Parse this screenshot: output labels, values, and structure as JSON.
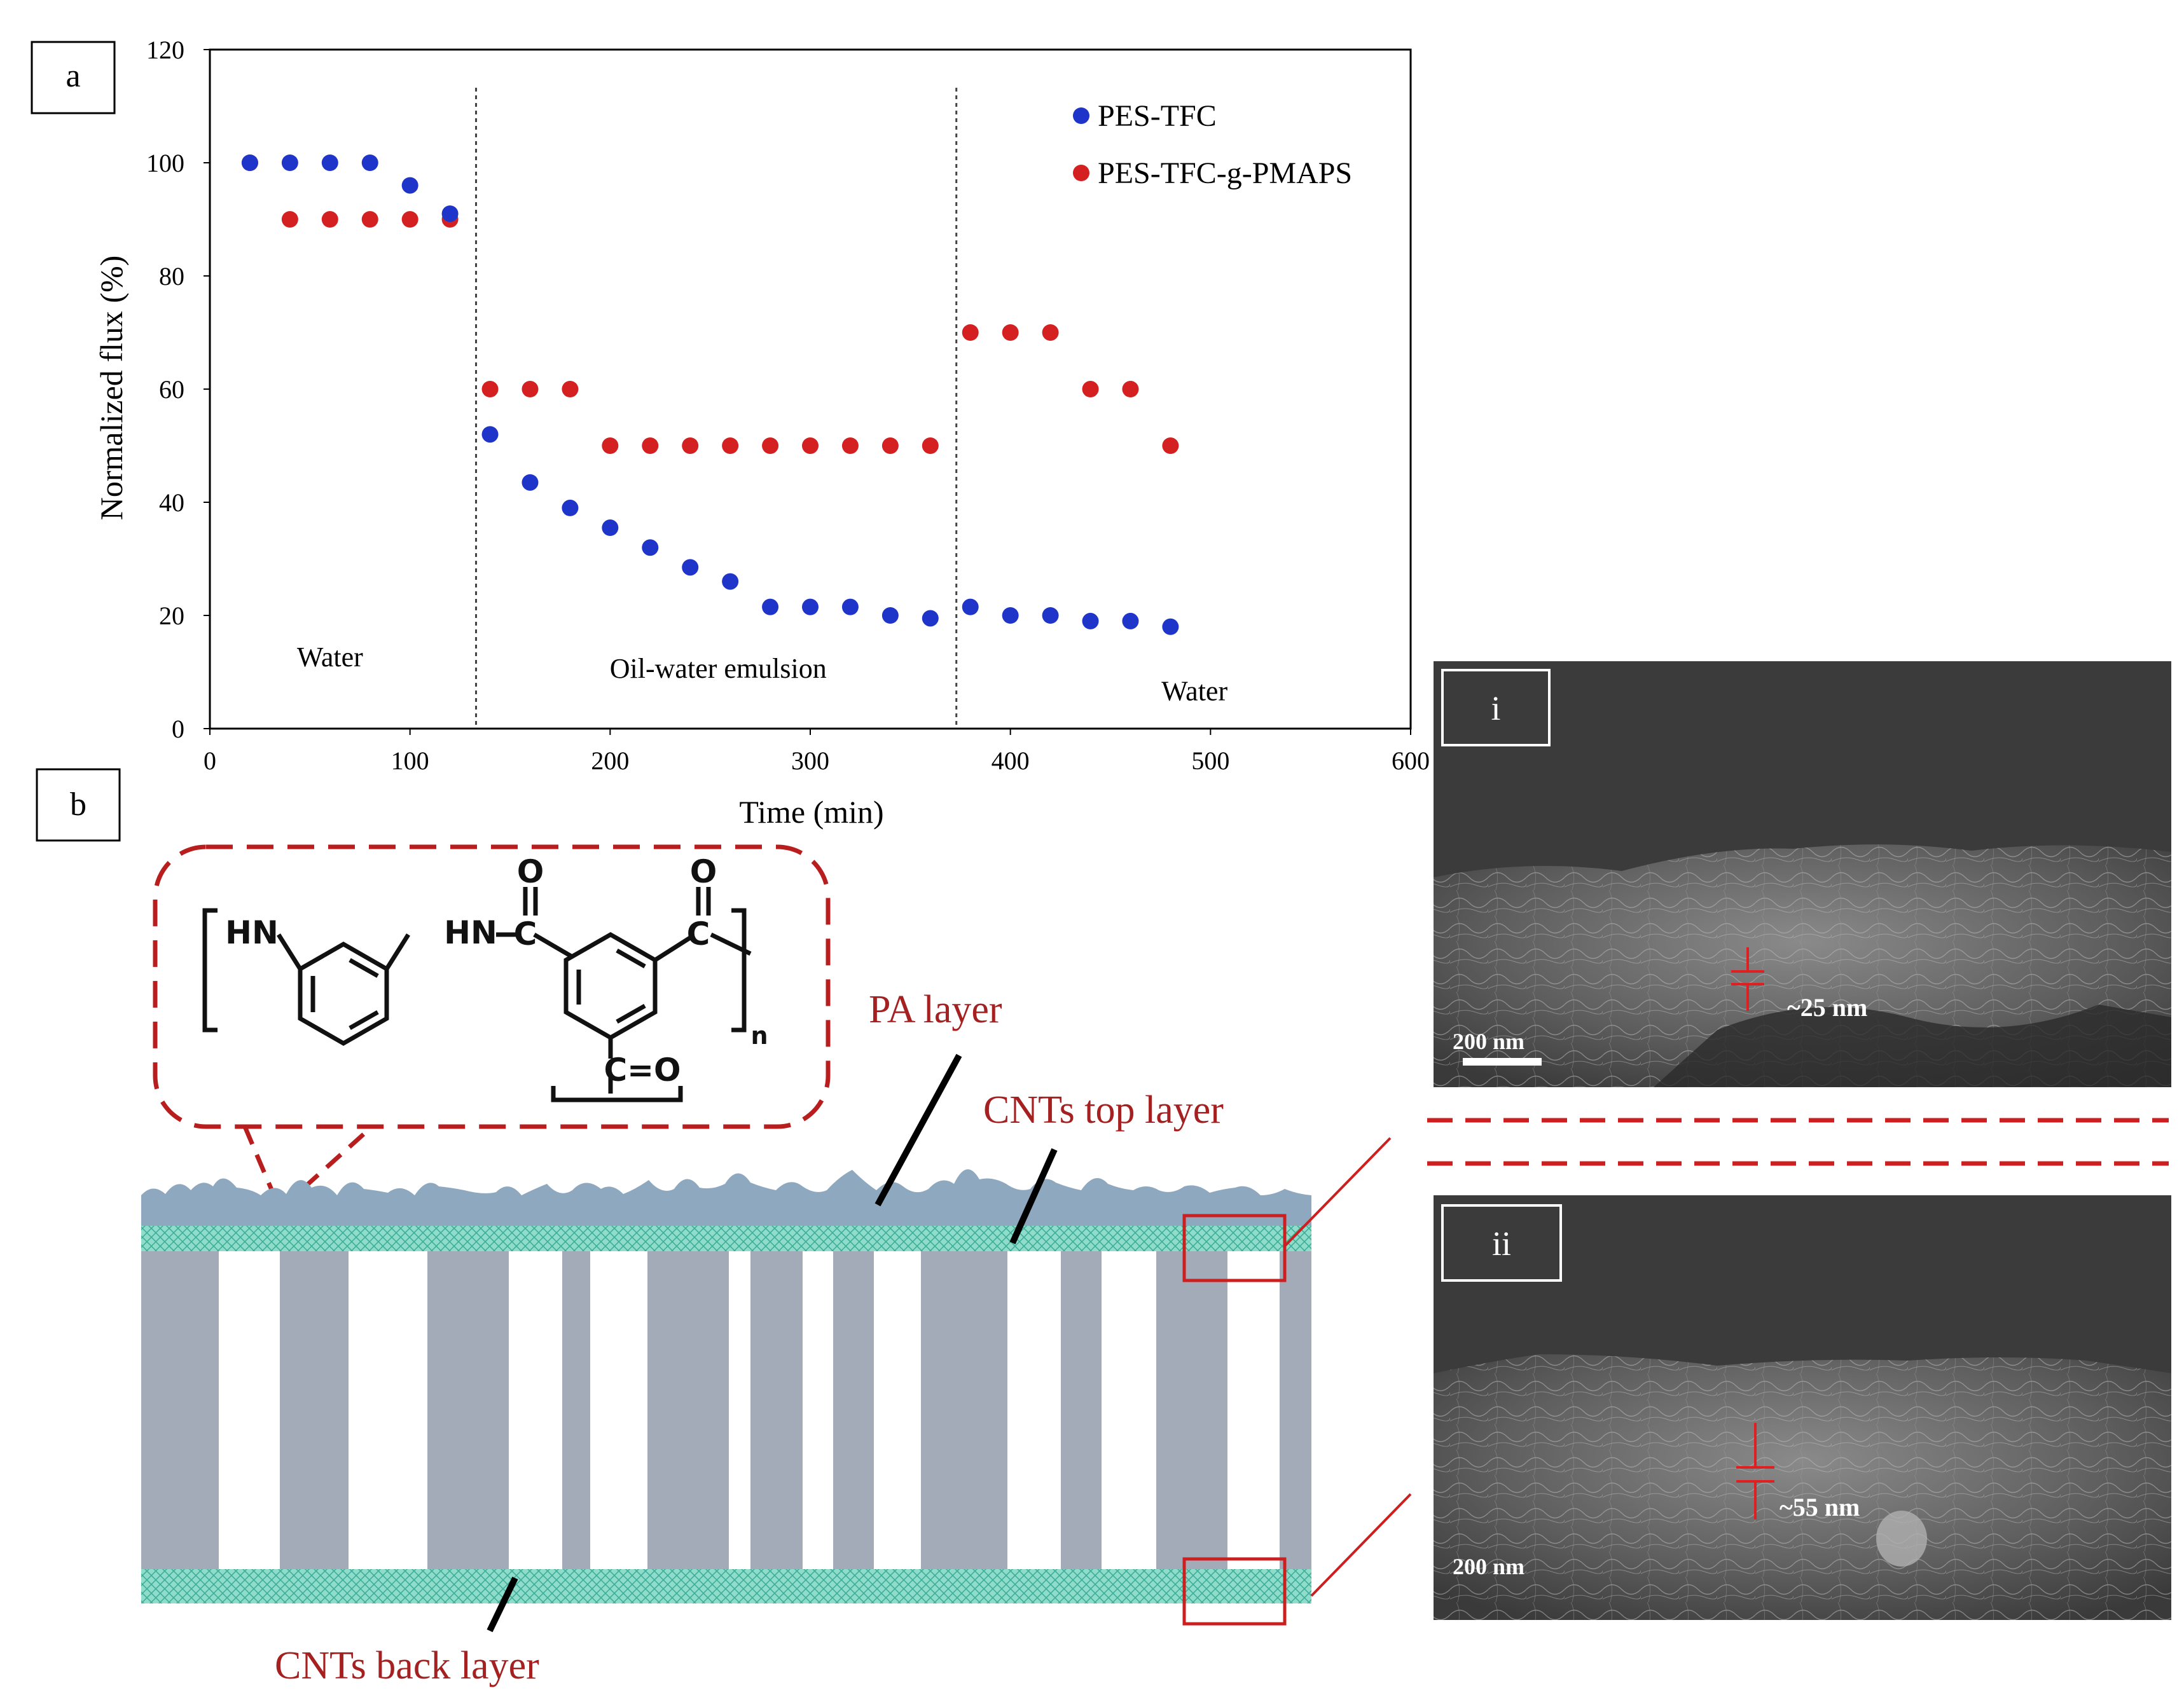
{
  "panels": {
    "a_label": "a",
    "b_label": "b",
    "i_label": "i",
    "ii_label": "ii"
  },
  "chart_data": {
    "type": "scatter",
    "xlabel": "Time (min)",
    "ylabel": "Normalized flux (%)",
    "xlim": [
      0,
      600
    ],
    "ylim": [
      0,
      120
    ],
    "x_ticks": [
      "0",
      "100",
      "200",
      "300",
      "400",
      "500",
      "600"
    ],
    "y_ticks": [
      "0",
      "20",
      "40",
      "60",
      "80",
      "100",
      "120"
    ],
    "legend_position": "top-right",
    "grid": false,
    "dividers": [
      133,
      373
    ],
    "regions": [
      {
        "label": "Water",
        "x": 60,
        "y": 11
      },
      {
        "label": "Oil-water emulsion",
        "x": 254,
        "y": 9
      },
      {
        "label": "Water",
        "x": 492,
        "y": 5
      }
    ],
    "series": [
      {
        "name": "PES-TFC",
        "color": "#1f35c9",
        "points": [
          [
            20,
            100
          ],
          [
            40,
            100
          ],
          [
            60,
            100
          ],
          [
            80,
            100
          ],
          [
            100,
            96
          ],
          [
            120,
            91
          ],
          [
            140,
            52
          ],
          [
            160,
            43.5
          ],
          [
            180,
            39
          ],
          [
            200,
            35.5
          ],
          [
            220,
            32
          ],
          [
            240,
            28.5
          ],
          [
            260,
            26
          ],
          [
            280,
            21.5
          ],
          [
            300,
            21.5
          ],
          [
            320,
            21.5
          ],
          [
            340,
            20
          ],
          [
            360,
            19.5
          ],
          [
            380,
            21.5
          ],
          [
            400,
            20
          ],
          [
            420,
            20
          ],
          [
            440,
            19
          ],
          [
            460,
            19
          ],
          [
            480,
            18
          ]
        ]
      },
      {
        "name": "PES-TFC-g-PMAPS",
        "color": "#d42020",
        "points": [
          [
            20,
            100
          ],
          [
            40,
            90
          ],
          [
            60,
            90
          ],
          [
            80,
            90
          ],
          [
            100,
            90
          ],
          [
            120,
            90
          ],
          [
            140,
            60
          ],
          [
            160,
            60
          ],
          [
            180,
            60
          ],
          [
            200,
            50
          ],
          [
            220,
            50
          ],
          [
            240,
            50
          ],
          [
            260,
            50
          ],
          [
            280,
            50
          ],
          [
            300,
            50
          ],
          [
            320,
            50
          ],
          [
            340,
            50
          ],
          [
            360,
            50
          ],
          [
            380,
            70
          ],
          [
            400,
            70
          ],
          [
            420,
            70
          ],
          [
            440,
            60
          ],
          [
            460,
            60
          ],
          [
            480,
            50
          ]
        ]
      }
    ]
  },
  "diagram": {
    "pa_layer": "PA layer",
    "cnt_top": "CNTs top layer",
    "cnt_back": "CNTs back layer",
    "chem": {
      "hn1": "HN",
      "hn2": "HN",
      "o1": "O",
      "o2": "O",
      "c1": "C",
      "c2": "C",
      "co": "C=O",
      "n": "n"
    }
  },
  "sem": {
    "top_measure": "~25 nm",
    "top_scale": "200 nm",
    "bottom_measure": "~55 nm",
    "bottom_scale": "200 nm"
  },
  "colors": {
    "accent_red": "#a52020",
    "membrane_grey": "#a3abb9",
    "pa_blue": "#8ea8c0",
    "cnt_teal": "#7fd3c4"
  }
}
